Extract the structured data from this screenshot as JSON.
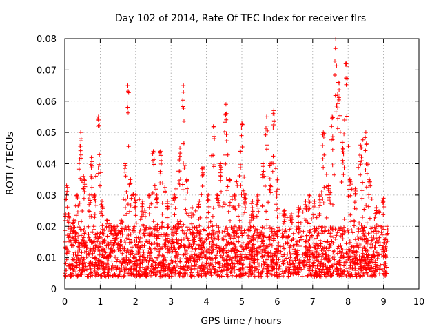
{
  "chart_data": {
    "type": "scatter",
    "title": "Day 102 of 2014, Rate Of TEC Index for receiver flrs",
    "xlabel": "GPS time / hours",
    "ylabel": "ROTI / TECUs",
    "xlim": [
      0,
      10
    ],
    "ylim": [
      0,
      0.08
    ],
    "xticks": [
      0,
      1,
      2,
      3,
      4,
      5,
      6,
      7,
      8,
      9,
      10
    ],
    "yticks": [
      "0",
      "0.01",
      "0.02",
      "0.03",
      "0.04",
      "0.05",
      "0.06",
      "0.07",
      "0.08"
    ],
    "ytick_values": [
      0,
      0.01,
      0.02,
      0.03,
      0.04,
      0.05,
      0.06,
      0.07,
      0.08
    ],
    "grid": true,
    "marker": "+",
    "color": "#ff0000",
    "series": [
      {
        "name": "ROTI",
        "dense_band": {
          "x_range": [
            0,
            9.1
          ],
          "typical_range": [
            0.004,
            0.02
          ]
        },
        "envelope": [
          [
            0.0,
            0.024
          ],
          [
            0.05,
            0.033
          ],
          [
            0.1,
            0.024
          ],
          [
            0.25,
            0.022
          ],
          [
            0.35,
            0.03
          ],
          [
            0.45,
            0.05
          ],
          [
            0.55,
            0.035
          ],
          [
            0.7,
            0.03
          ],
          [
            0.75,
            0.042
          ],
          [
            0.85,
            0.03
          ],
          [
            0.95,
            0.055
          ],
          [
            1.05,
            0.028
          ],
          [
            1.2,
            0.022
          ],
          [
            1.4,
            0.02
          ],
          [
            1.6,
            0.022
          ],
          [
            1.7,
            0.04
          ],
          [
            1.78,
            0.065
          ],
          [
            1.85,
            0.035
          ],
          [
            2.0,
            0.03
          ],
          [
            2.2,
            0.028
          ],
          [
            2.4,
            0.03
          ],
          [
            2.5,
            0.044
          ],
          [
            2.6,
            0.03
          ],
          [
            2.7,
            0.044
          ],
          [
            2.9,
            0.028
          ],
          [
            3.1,
            0.03
          ],
          [
            3.25,
            0.045
          ],
          [
            3.35,
            0.065
          ],
          [
            3.45,
            0.035
          ],
          [
            3.6,
            0.026
          ],
          [
            3.8,
            0.028
          ],
          [
            3.9,
            0.039
          ],
          [
            4.05,
            0.03
          ],
          [
            4.2,
            0.052
          ],
          [
            4.3,
            0.03
          ],
          [
            4.4,
            0.04
          ],
          [
            4.55,
            0.059
          ],
          [
            4.65,
            0.035
          ],
          [
            4.8,
            0.03
          ],
          [
            4.95,
            0.044
          ],
          [
            5.0,
            0.053
          ],
          [
            5.1,
            0.03
          ],
          [
            5.3,
            0.028
          ],
          [
            5.45,
            0.03
          ],
          [
            5.6,
            0.04
          ],
          [
            5.7,
            0.055
          ],
          [
            5.8,
            0.04
          ],
          [
            5.9,
            0.057
          ],
          [
            6.0,
            0.035
          ],
          [
            6.2,
            0.025
          ],
          [
            6.4,
            0.024
          ],
          [
            6.6,
            0.026
          ],
          [
            6.8,
            0.028
          ],
          [
            6.9,
            0.03
          ],
          [
            7.05,
            0.028
          ],
          [
            7.2,
            0.03
          ],
          [
            7.3,
            0.05
          ],
          [
            7.45,
            0.033
          ],
          [
            7.55,
            0.055
          ],
          [
            7.65,
            0.08
          ],
          [
            7.72,
            0.066
          ],
          [
            7.85,
            0.045
          ],
          [
            7.95,
            0.072
          ],
          [
            8.05,
            0.035
          ],
          [
            8.2,
            0.032
          ],
          [
            8.35,
            0.046
          ],
          [
            8.5,
            0.05
          ],
          [
            8.6,
            0.035
          ],
          [
            8.8,
            0.026
          ],
          [
            9.0,
            0.029
          ],
          [
            9.1,
            0.02
          ]
        ]
      }
    ]
  }
}
